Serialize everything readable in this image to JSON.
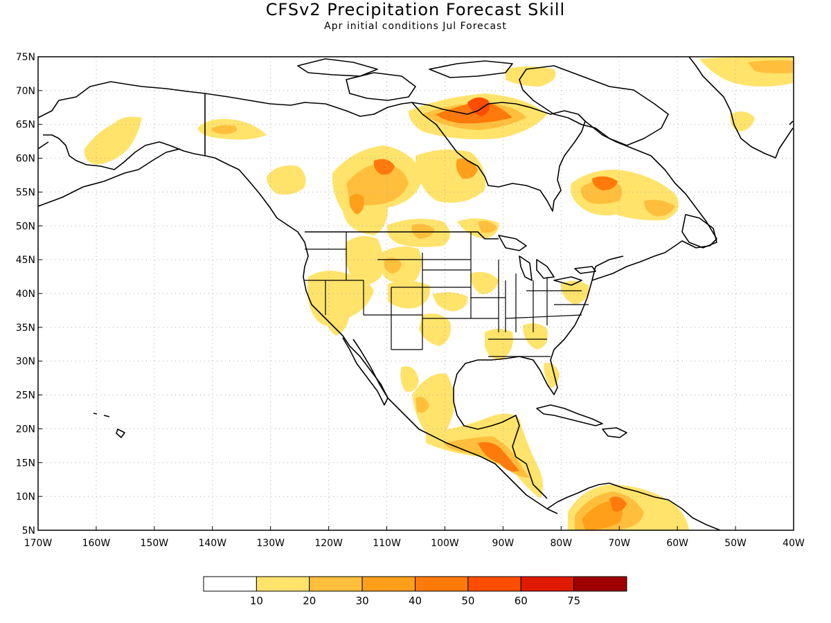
{
  "title": "CFSv2 Precipitation Forecast Skill",
  "subtitle": "Apr initial conditions  Jul Forecast",
  "map": {
    "lon_range": [
      -170,
      -40
    ],
    "lat_range": [
      5,
      75
    ],
    "lat_labels": [
      "75N",
      "70N",
      "65N",
      "60N",
      "55N",
      "50N",
      "45N",
      "40N",
      "35N",
      "30N",
      "25N",
      "20N",
      "15N",
      "10N",
      "5N"
    ],
    "lon_labels": [
      "170W",
      "160W",
      "150W",
      "140W",
      "130W",
      "120W",
      "110W",
      "100W",
      "90W",
      "80W",
      "70W",
      "60W",
      "50W",
      "40W"
    ],
    "gridlines": "dotted"
  },
  "colorbar": {
    "labels": [
      "10",
      "20",
      "30",
      "40",
      "50",
      "60",
      "75"
    ],
    "colors": [
      "#ffffff",
      "#ffe36b",
      "#ffbf3d",
      "#ff9f1a",
      "#ff7a0a",
      "#ff4d00",
      "#e01a00",
      "#a00000"
    ]
  },
  "colors": {
    "land_outline": "#000000",
    "skill_10_20": "#ffe36b",
    "skill_20_30": "#ffbf3d",
    "skill_30_40": "#ff9f1a",
    "skill_40_50": "#ff7a0a",
    "skill_50_60": "#ff4d00"
  }
}
